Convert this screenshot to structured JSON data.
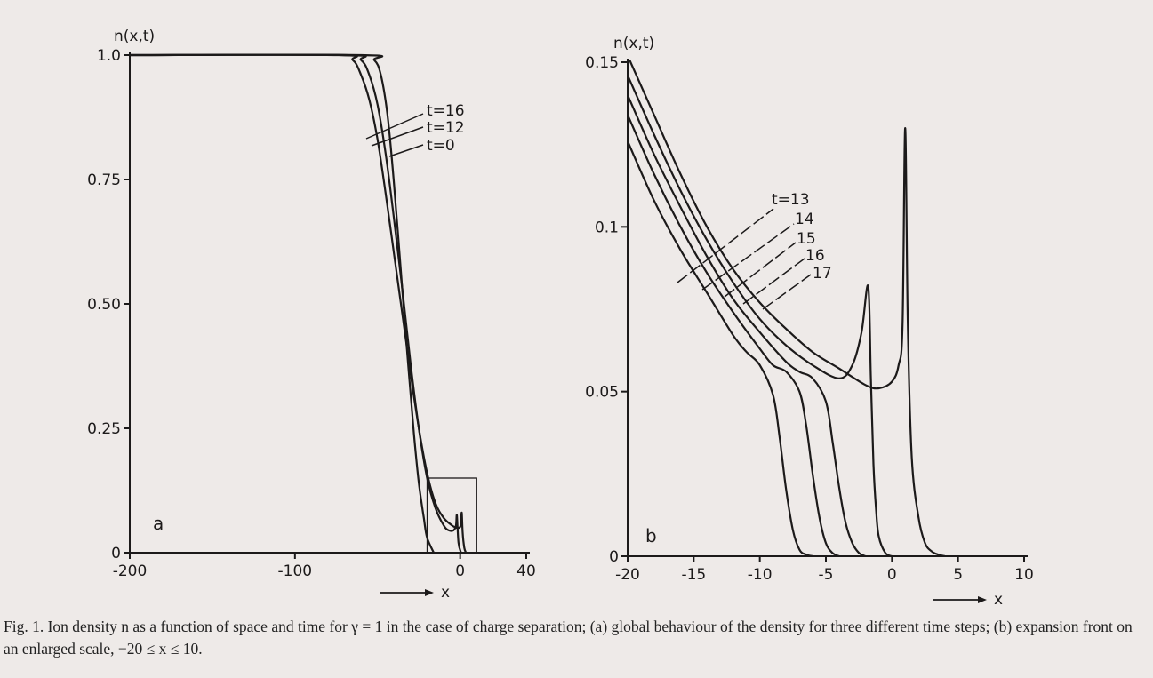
{
  "caption": {
    "text": "Fig. 1. Ion density n as a function of space and time for γ = 1 in the case of charge separation; (a) global behaviour of the density for three different time steps; (b) expansion front on an enlarged scale, −20 ≤ x ≤ 10."
  },
  "chart_data": [
    {
      "type": "line",
      "panel_label": "a",
      "ylabel": "n(x,t)",
      "xlabel": "x",
      "xlim": [
        -200,
        40
      ],
      "ylim": [
        0,
        1.0
      ],
      "xticks": [
        -200,
        -100,
        0,
        40
      ],
      "xtick_labels": [
        "-200",
        "-100",
        "0",
        "40"
      ],
      "yticks": [
        0,
        0.25,
        0.5,
        0.75,
        1.0
      ],
      "ytick_labels": [
        "0",
        "0.25",
        "0.50",
        "0.75",
        "1.0"
      ],
      "grid": false,
      "inset_box": {
        "x": [
          -20,
          10
        ],
        "y": [
          0,
          0.15
        ]
      },
      "series": [
        {
          "name": "t=0",
          "x": [
            -200,
            -60,
            -52,
            -48,
            -44,
            -40,
            -36,
            -32,
            -28,
            -25,
            -22,
            -20,
            -16
          ],
          "y": [
            1.0,
            1.0,
            0.99,
            0.96,
            0.88,
            0.74,
            0.57,
            0.4,
            0.24,
            0.14,
            0.07,
            0.03,
            0.0
          ]
        },
        {
          "name": "t=12",
          "x": [
            -200,
            -70,
            -60,
            -55,
            -50,
            -45,
            -40,
            -35,
            -30,
            -25,
            -20,
            -15,
            -10,
            -7,
            -4,
            -2.5,
            -2,
            -1,
            0.5
          ],
          "y": [
            1.0,
            1.0,
            0.99,
            0.96,
            0.9,
            0.8,
            0.67,
            0.53,
            0.38,
            0.25,
            0.15,
            0.09,
            0.055,
            0.045,
            0.045,
            0.055,
            0.075,
            0.02,
            0.0
          ]
        },
        {
          "name": "t=16",
          "x": [
            -200,
            -75,
            -65,
            -60,
            -55,
            -50,
            -45,
            -40,
            -35,
            -30,
            -25,
            -20,
            -15,
            -10,
            -5,
            -2,
            0,
            0.5,
            1.0,
            1.5,
            2.5,
            3.5
          ],
          "y": [
            1.0,
            1.0,
            0.99,
            0.96,
            0.91,
            0.83,
            0.72,
            0.6,
            0.48,
            0.36,
            0.25,
            0.16,
            0.1,
            0.07,
            0.055,
            0.05,
            0.052,
            0.065,
            0.08,
            0.04,
            0.01,
            0.0
          ]
        }
      ]
    },
    {
      "type": "line",
      "panel_label": "b",
      "ylabel": "n(x,t)",
      "xlabel": "x",
      "xlim": [
        -20,
        10
      ],
      "ylim": [
        0,
        0.15
      ],
      "xticks": [
        -20,
        -15,
        -10,
        -5,
        0,
        5,
        10
      ],
      "xtick_labels": [
        "-20",
        "-15",
        "-10",
        "-5",
        "0",
        "5",
        "10"
      ],
      "yticks": [
        0,
        0.05,
        0.1,
        0.15
      ],
      "ytick_labels": [
        "0",
        "0.05",
        "0.1",
        "0.15"
      ],
      "grid": false,
      "series": [
        {
          "name": "t=13",
          "x": [
            -20,
            -18,
            -16,
            -14,
            -12,
            -11,
            -10,
            -9,
            -8.5,
            -8,
            -7.5,
            -7,
            -6.5,
            -6
          ],
          "y": [
            0.126,
            0.108,
            0.093,
            0.08,
            0.067,
            0.062,
            0.058,
            0.049,
            0.036,
            0.02,
            0.008,
            0.002,
            0.0005,
            0.0
          ]
        },
        {
          "name": "14",
          "x": [
            -20,
            -18,
            -16,
            -14,
            -12,
            -10,
            -9,
            -8,
            -7,
            -6.5,
            -6,
            -5.5,
            -5,
            -4.5,
            -4
          ],
          "y": [
            0.134,
            0.116,
            0.1,
            0.086,
            0.074,
            0.063,
            0.058,
            0.056,
            0.05,
            0.04,
            0.025,
            0.012,
            0.004,
            0.001,
            0.0
          ]
        },
        {
          "name": "15",
          "x": [
            -20,
            -18,
            -16,
            -14,
            -12,
            -10,
            -8,
            -7,
            -6,
            -5,
            -4.5,
            -4,
            -3.5,
            -3,
            -2.5,
            -2
          ],
          "y": [
            0.14,
            0.122,
            0.106,
            0.091,
            0.078,
            0.068,
            0.059,
            0.056,
            0.054,
            0.047,
            0.035,
            0.021,
            0.01,
            0.004,
            0.001,
            0.0
          ]
        },
        {
          "name": "16",
          "x": [
            -20,
            -18,
            -16,
            -14,
            -12,
            -10,
            -8,
            -6,
            -4,
            -3,
            -2.3,
            -1.8,
            -1.6,
            -1.4,
            -1.2,
            -1,
            -0.5,
            0
          ],
          "y": [
            0.146,
            0.128,
            0.111,
            0.096,
            0.083,
            0.072,
            0.064,
            0.058,
            0.054,
            0.058,
            0.068,
            0.082,
            0.055,
            0.028,
            0.014,
            0.006,
            0.001,
            0.0
          ]
        },
        {
          "name": "17",
          "x": [
            -20,
            -18,
            -16,
            -14,
            -12,
            -10,
            -8,
            -6,
            -4,
            -2,
            -1,
            0,
            0.5,
            0.8,
            1.0,
            1.2,
            1.5,
            2.0,
            2.5,
            3.0,
            3.5,
            4.0
          ],
          "y": [
            0.152,
            0.134,
            0.116,
            0.1,
            0.087,
            0.077,
            0.069,
            0.062,
            0.057,
            0.052,
            0.051,
            0.053,
            0.058,
            0.07,
            0.13,
            0.07,
            0.03,
            0.012,
            0.004,
            0.0015,
            0.0005,
            0.0
          ]
        }
      ]
    }
  ]
}
